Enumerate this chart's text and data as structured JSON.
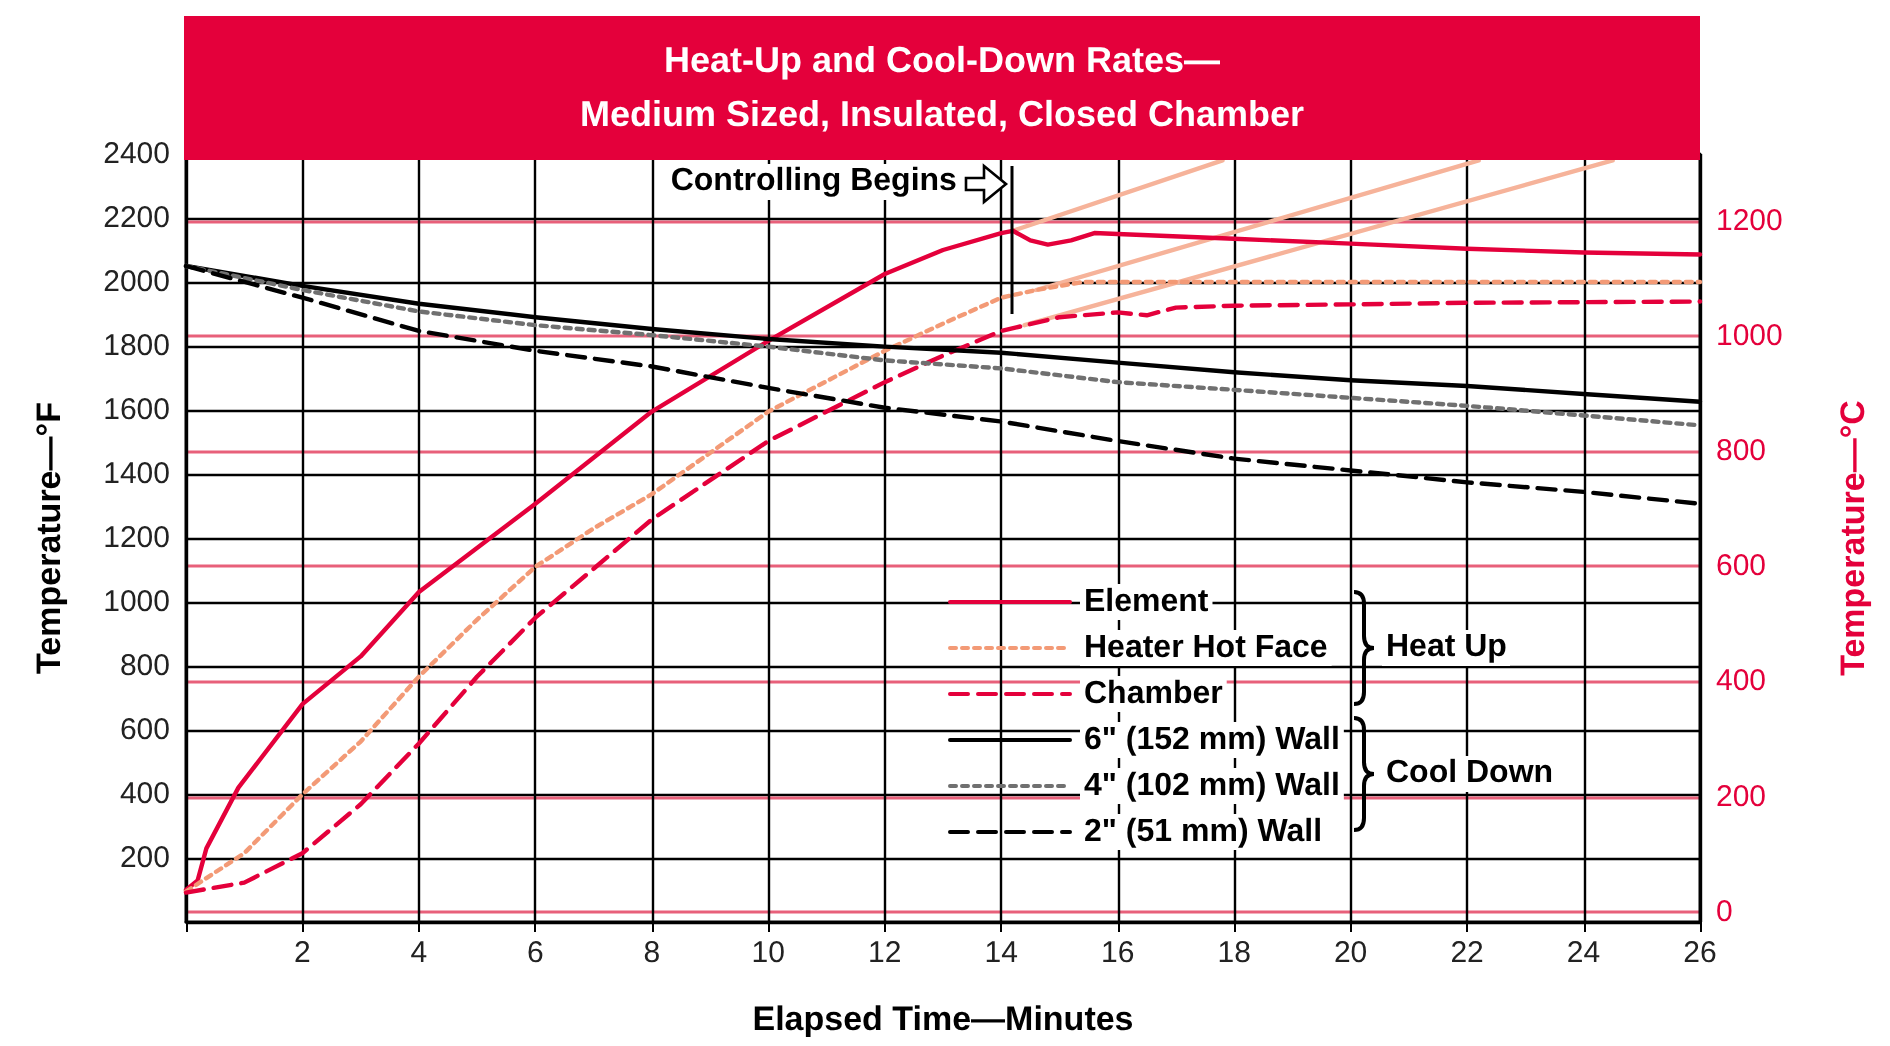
{
  "chart_data": {
    "type": "line",
    "title": "Heat-Up and Cool-Down Rates—",
    "subtitle": "Medium Sized, Insulated, Closed Chamber",
    "xlabel": "Elapsed Time—Minutes",
    "ylabel": "Temperature—°F",
    "y2label": "Temperature—°C",
    "xlim": [
      0,
      26
    ],
    "xticks": [
      {
        "value": 0,
        "label": null
      },
      2,
      4,
      6,
      8,
      10,
      12,
      14,
      16,
      18,
      20,
      22,
      24,
      26
    ],
    "ylim": [
      0,
      2400
    ],
    "yticks": [
      {
        "value": 0,
        "label": null
      },
      200,
      400,
      600,
      800,
      1000,
      1200,
      1400,
      1600,
      1800,
      2000,
      2200,
      2400
    ],
    "y2lim": [
      -17.8,
      1315.6
    ],
    "y2ticks": [
      0,
      200,
      400,
      600,
      800,
      1000,
      1200
    ],
    "grid": true,
    "legend": "bottom right",
    "marker": "none",
    "annotations": [
      {
        "text": "Controlling Begins",
        "x": 14.2,
        "y": 2200
      },
      "Heat Up",
      "Cool Down"
    ],
    "series": [
      {
        "name": "Element",
        "color": "#e4003b",
        "line_style": "solid",
        "x": [
          0,
          0.2,
          0.35,
          0.9,
          2,
          3,
          4,
          6,
          8,
          10,
          12,
          13,
          14,
          14.2,
          14.5,
          14.8,
          15.2,
          15.6,
          16,
          18,
          20,
          22,
          24,
          26
        ],
        "values": [
          100,
          130,
          230,
          420,
          681,
          830,
          1031,
          1307,
          1595,
          1816,
          2025,
          2100,
          2153,
          2160,
          2130,
          2117,
          2130,
          2153,
          2150,
          2135,
          2120,
          2104,
          2092,
          2086
        ]
      },
      {
        "name": "Heater Hot Face",
        "color": "#f39a76",
        "line_style": "dotted",
        "x": [
          0,
          1,
          2,
          3,
          4,
          5,
          6,
          7,
          8,
          10,
          12,
          13,
          14,
          14.6,
          15.4,
          16,
          18,
          20,
          22,
          24,
          26
        ],
        "values": [
          95,
          215,
          399,
          564,
          767,
          945,
          1110,
          1230,
          1337,
          1595,
          1785,
          1870,
          1951,
          1975,
          2000,
          2000,
          2000,
          2000,
          2000,
          2000,
          2000
        ]
      },
      {
        "name": "Chamber",
        "color": "#e4003b",
        "line_style": "dashed",
        "x": [
          0,
          1,
          2,
          3,
          4,
          5,
          6,
          7,
          8,
          10,
          12,
          13,
          14,
          15,
          16,
          16.5,
          17,
          18,
          20,
          22,
          24,
          26
        ],
        "values": [
          92,
          123,
          215,
          368,
          558,
          767,
          951,
          1104,
          1258,
          1503,
          1687,
          1770,
          1847,
          1890,
          1905,
          1896,
          1920,
          1926,
          1930,
          1935,
          1937,
          1939
        ]
      },
      {
        "name": "6\" (152 mm) Wall",
        "color": "#000000",
        "line_style": "solid",
        "x": [
          0,
          2,
          4,
          6,
          8,
          10,
          12,
          14,
          16,
          18,
          20,
          22,
          24,
          26
        ],
        "values": [
          2050,
          1988,
          1932,
          1890,
          1853,
          1822,
          1798,
          1779,
          1748,
          1718,
          1693,
          1675,
          1650,
          1626
        ]
      },
      {
        "name": "4\" (102 mm) Wall",
        "color": "#707070",
        "line_style": "dotted",
        "x": [
          0,
          2,
          4,
          6,
          8,
          10,
          12,
          14,
          16,
          18,
          20,
          22,
          24,
          26
        ],
        "values": [
          2050,
          1975,
          1908,
          1865,
          1834,
          1798,
          1755,
          1730,
          1687,
          1663,
          1638,
          1613,
          1583,
          1552
        ]
      },
      {
        "name": "2\" (51 mm) Wall",
        "color": "#000000",
        "line_style": "dashed",
        "x": [
          0,
          2,
          4,
          6,
          8,
          10,
          12,
          14,
          16,
          18,
          20,
          22,
          24,
          26
        ],
        "values": [
          2050,
          1951,
          1847,
          1785,
          1736,
          1669,
          1607,
          1564,
          1503,
          1448,
          1411,
          1374,
          1344,
          1307
        ]
      },
      {
        "color": "#f6b39a",
        "line_style": "solid",
        "x": [
          14.2,
          17.8
        ],
        "values": [
          2160,
          2380
        ]
      },
      {
        "color": "#f6b39a",
        "line_style": "solid",
        "x": [
          14.6,
          22.2
        ],
        "values": [
          1975,
          2380
        ]
      },
      {
        "color": "#f6b39a",
        "line_style": "solid",
        "x": [
          14.4,
          24.5
        ],
        "values": [
          1865,
          2380
        ]
      }
    ]
  }
}
